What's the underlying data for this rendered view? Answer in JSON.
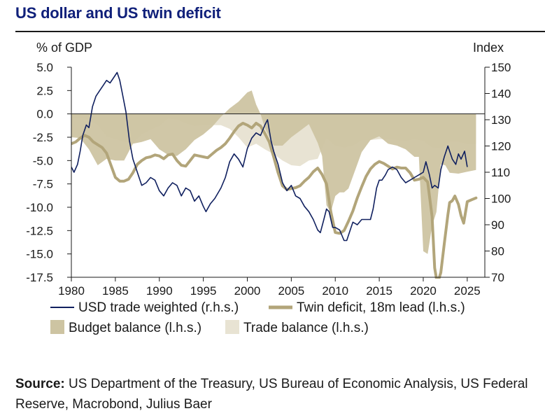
{
  "title": "US dollar and US twin deficit",
  "source_label": "Source:",
  "source_text": "US Department of the Treasury, US Bureau of Economic Analysis, US Federal Reserve, Macrobond, Julius Baer",
  "colors": {
    "title": "#10207a",
    "usd": "#10205f",
    "twin": "#b2a57a",
    "budget": "#cdc4a2",
    "trade": "#e8e3d3"
  },
  "chart_data": {
    "type": "line",
    "left_axis": {
      "label": "% of GDP",
      "ylim": [
        -17.5,
        5.0
      ],
      "ticks": [
        "5.0",
        "2.5",
        "0.0",
        "-2.5",
        "-5.0",
        "-7.5",
        "-10.0",
        "-12.5",
        "-15.0",
        "-17.5"
      ],
      "tick_values": [
        5,
        2.5,
        0,
        -2.5,
        -5,
        -7.5,
        -10,
        -12.5,
        -15,
        -17.5
      ]
    },
    "right_axis": {
      "label": "Index",
      "ylim": [
        70,
        150
      ],
      "ticks": [
        "150",
        "140",
        "130",
        "120",
        "110",
        "100",
        "90",
        "80",
        "70"
      ],
      "tick_values": [
        150,
        140,
        130,
        120,
        110,
        100,
        90,
        80,
        70
      ]
    },
    "x_axis": {
      "xlim": [
        1980,
        2027
      ],
      "ticks": [
        "1980",
        "1985",
        "1990",
        "1995",
        "2000",
        "2005",
        "2010",
        "2015",
        "2020",
        "2025"
      ],
      "tick_values": [
        1980,
        1985,
        1990,
        1995,
        2000,
        2005,
        2010,
        2015,
        2020,
        2025
      ]
    },
    "legend": [
      {
        "name": "USD trade weighted (r.h.s.)",
        "kind": "line",
        "key": "usd"
      },
      {
        "name": "Twin deficit, 18m lead (l.h.s.)",
        "kind": "line",
        "key": "twin"
      },
      {
        "name": "Budget balance (l.h.s.)",
        "kind": "area",
        "key": "budget"
      },
      {
        "name": "Trade balance (l.h.s.)",
        "kind": "area",
        "key": "trade"
      }
    ],
    "series": [
      {
        "name": "USD trade weighted (r.h.s.)",
        "axis": "right",
        "x": [
          1980.0,
          1980.3,
          1980.7,
          1981.0,
          1981.3,
          1981.7,
          1982.0,
          1982.4,
          1982.8,
          1983.2,
          1983.6,
          1984.0,
          1984.4,
          1984.8,
          1985.2,
          1985.5,
          1985.8,
          1986.2,
          1986.6,
          1987.0,
          1987.5,
          1988.0,
          1988.5,
          1989.0,
          1989.5,
          1990.0,
          1990.5,
          1991.0,
          1991.5,
          1992.0,
          1992.5,
          1993.0,
          1993.5,
          1994.0,
          1994.5,
          1995.0,
          1995.3,
          1995.8,
          1996.3,
          1997.0,
          1997.5,
          1998.0,
          1998.5,
          1999.0,
          1999.5,
          2000.0,
          2000.5,
          2001.0,
          2001.5,
          2002.0,
          2002.3,
          2002.7,
          2003.0,
          2003.5,
          2004.0,
          2004.5,
          2005.0,
          2005.5,
          2006.0,
          2006.5,
          2007.0,
          2007.5,
          2008.0,
          2008.3,
          2008.7,
          2009.0,
          2009.3,
          2009.7,
          2010.0,
          2010.5,
          2011.0,
          2011.3,
          2011.7,
          2012.0,
          2012.5,
          2013.0,
          2013.5,
          2014.0,
          2014.3,
          2014.7,
          2015.0,
          2015.3,
          2015.7,
          2016.0,
          2016.5,
          2017.0,
          2017.5,
          2018.0,
          2018.5,
          2019.0,
          2019.5,
          2020.0,
          2020.3,
          2020.7,
          2021.0,
          2021.3,
          2021.7,
          2022.0,
          2022.4,
          2022.8,
          2023.0,
          2023.3,
          2023.7,
          2024.0,
          2024.3,
          2024.7,
          2025.0
        ],
        "values": [
          112,
          110,
          113,
          118,
          124,
          128,
          127,
          135,
          139,
          141,
          143,
          145,
          144,
          146,
          148,
          145,
          140,
          133,
          122,
          115,
          110,
          105,
          106,
          108,
          107,
          103,
          101,
          104,
          106,
          105,
          101,
          104,
          103,
          99,
          101,
          97,
          95,
          98,
          100,
          104,
          108,
          114,
          117,
          115,
          112,
          119,
          123,
          125,
          124,
          128,
          130,
          122,
          118,
          113,
          106,
          103,
          105,
          101,
          100,
          97,
          95,
          92,
          88,
          87,
          92,
          96,
          95,
          89,
          89,
          88,
          84,
          84,
          88,
          91,
          90,
          92,
          92,
          92,
          96,
          104,
          107,
          107,
          109,
          111,
          112,
          111,
          108,
          106,
          107,
          108,
          109,
          110,
          114,
          109,
          104,
          105,
          104,
          111,
          116,
          120,
          118,
          115,
          113,
          117,
          115,
          118,
          112
        ]
      },
      {
        "name": "Twin deficit, 18m lead (l.h.s.)",
        "axis": "left",
        "x": [
          1980.0,
          1980.5,
          1981.0,
          1981.5,
          1982.0,
          1982.5,
          1983.0,
          1983.5,
          1984.0,
          1984.5,
          1985.0,
          1985.5,
          1986.0,
          1986.5,
          1987.0,
          1987.5,
          1988.0,
          1988.5,
          1989.0,
          1989.5,
          1990.0,
          1990.5,
          1991.0,
          1991.5,
          1992.0,
          1992.5,
          1993.0,
          1993.5,
          1994.0,
          1994.5,
          1995.0,
          1995.5,
          1996.0,
          1996.5,
          1997.0,
          1997.5,
          1998.0,
          1998.5,
          1999.0,
          1999.5,
          2000.0,
          2000.5,
          2001.0,
          2001.5,
          2002.0,
          2002.5,
          2003.0,
          2003.5,
          2004.0,
          2004.5,
          2005.0,
          2005.5,
          2006.0,
          2006.5,
          2007.0,
          2007.5,
          2008.0,
          2008.5,
          2009.0,
          2009.5,
          2010.0,
          2010.5,
          2011.0,
          2011.5,
          2012.0,
          2012.5,
          2013.0,
          2013.5,
          2014.0,
          2014.5,
          2015.0,
          2015.5,
          2016.0,
          2016.5,
          2017.0,
          2017.5,
          2018.0,
          2018.5,
          2019.0,
          2019.5,
          2020.0,
          2020.5,
          2021.0,
          2021.3,
          2021.6,
          2022.0,
          2022.4,
          2022.8,
          2023.0,
          2023.3,
          2023.6,
          2024.0,
          2024.3,
          2024.6,
          2025.0,
          2025.5,
          2026.0
        ],
        "values": [
          -3.2,
          -3.0,
          -2.6,
          -2.3,
          -2.5,
          -3.0,
          -3.3,
          -3.6,
          -4.2,
          -5.5,
          -6.8,
          -7.2,
          -7.2,
          -7.0,
          -6.3,
          -5.4,
          -5.0,
          -4.7,
          -4.6,
          -4.4,
          -4.5,
          -4.8,
          -4.4,
          -4.3,
          -5.0,
          -5.5,
          -5.6,
          -5.0,
          -4.4,
          -4.5,
          -4.6,
          -4.7,
          -4.3,
          -3.9,
          -3.6,
          -3.2,
          -2.6,
          -1.9,
          -1.3,
          -1.0,
          -1.2,
          -1.5,
          -1.0,
          -1.3,
          -2.1,
          -3.0,
          -4.6,
          -6.3,
          -7.7,
          -8.1,
          -8.0,
          -7.9,
          -7.7,
          -7.2,
          -6.8,
          -6.2,
          -5.8,
          -6.5,
          -7.5,
          -10.5,
          -12.7,
          -12.8,
          -12.5,
          -11.5,
          -10.4,
          -9.0,
          -7.8,
          -6.7,
          -5.9,
          -5.4,
          -5.1,
          -5.3,
          -5.6,
          -5.9,
          -5.7,
          -5.8,
          -5.8,
          -6.3,
          -7.1,
          -7.0,
          -6.8,
          -7.3,
          -11.0,
          -16.5,
          -18.2,
          -17.0,
          -13.8,
          -10.8,
          -9.5,
          -9.3,
          -8.8,
          -9.7,
          -10.9,
          -11.7,
          -9.4,
          -9.2,
          -9.0
        ]
      },
      {
        "name": "Budget balance (l.h.s.)",
        "axis": "left",
        "x": [
          1980.0,
          1981.0,
          1982.0,
          1983.0,
          1984.0,
          1985.0,
          1986.0,
          1987.0,
          1988.0,
          1989.0,
          1990.0,
          1991.0,
          1992.0,
          1993.0,
          1994.0,
          1995.0,
          1996.0,
          1997.0,
          1998.0,
          1999.0,
          2000.0,
          2000.5,
          2001.0,
          2001.5,
          2002.0,
          2002.5,
          2003.0,
          2004.0,
          2005.0,
          2006.0,
          2007.0,
          2008.0,
          2008.5,
          2009.0,
          2009.5,
          2010.0,
          2010.5,
          2011.0,
          2011.5,
          2012.0,
          2013.0,
          2014.0,
          2015.0,
          2016.0,
          2017.0,
          2018.0,
          2019.0,
          2019.5,
          2020.0,
          2020.5,
          2021.0,
          2021.5,
          2022.0,
          2022.5,
          2023.0,
          2024.0,
          2025.0,
          2026.0
        ],
        "values": [
          -2.5,
          -2.6,
          -3.8,
          -5.5,
          -4.8,
          -5.0,
          -5.0,
          -3.2,
          -3.0,
          -2.7,
          -3.8,
          -4.4,
          -4.5,
          -3.8,
          -2.8,
          -2.2,
          -1.4,
          -0.3,
          0.6,
          1.3,
          2.3,
          2.5,
          1.0,
          0.0,
          -1.5,
          -2.5,
          -3.4,
          -3.4,
          -2.5,
          -1.8,
          -1.1,
          -3.1,
          -4.5,
          -9.8,
          -10.5,
          -8.8,
          -8.4,
          -8.4,
          -8.0,
          -6.7,
          -4.1,
          -2.8,
          -2.4,
          -3.2,
          -3.4,
          -3.8,
          -4.6,
          -4.6,
          -14.7,
          -15.0,
          -12.0,
          -10.5,
          -5.4,
          -5.5,
          -6.3,
          -6.4,
          -6.2,
          -6.0
        ]
      },
      {
        "name": "Trade balance (l.h.s.)",
        "axis": "left",
        "x": [
          1980.0,
          1981.0,
          1982.0,
          1983.0,
          1984.0,
          1985.0,
          1986.0,
          1987.0,
          1988.0,
          1989.0,
          1990.0,
          1991.0,
          1992.0,
          1993.0,
          1994.0,
          1995.0,
          1996.0,
          1997.0,
          1998.0,
          1999.0,
          2000.0,
          2001.0,
          2002.0,
          2003.0,
          2004.0,
          2005.0,
          2006.0,
          2007.0,
          2008.0,
          2009.0,
          2010.0,
          2011.0,
          2012.0,
          2013.0,
          2014.0,
          2015.0,
          2016.0,
          2017.0,
          2018.0,
          2019.0,
          2020.0,
          2021.0,
          2022.0,
          2023.0,
          2024.0,
          2025.0,
          2026.0
        ],
        "values": [
          -0.5,
          -0.4,
          -0.6,
          -1.2,
          -2.4,
          -2.7,
          -3.0,
          -3.1,
          -2.2,
          -1.7,
          -1.3,
          -0.5,
          -0.6,
          -1.0,
          -1.3,
          -1.2,
          -1.2,
          -1.2,
          -1.6,
          -2.5,
          -3.6,
          -3.2,
          -3.8,
          -4.3,
          -5.0,
          -5.5,
          -5.6,
          -5.0,
          -4.8,
          -2.6,
          -3.4,
          -3.6,
          -3.4,
          -2.8,
          -2.8,
          -2.7,
          -2.7,
          -2.8,
          -2.9,
          -2.7,
          -2.9,
          -3.6,
          -3.7,
          -3.0,
          -3.0,
          -3.2,
          -3.2
        ]
      }
    ]
  }
}
